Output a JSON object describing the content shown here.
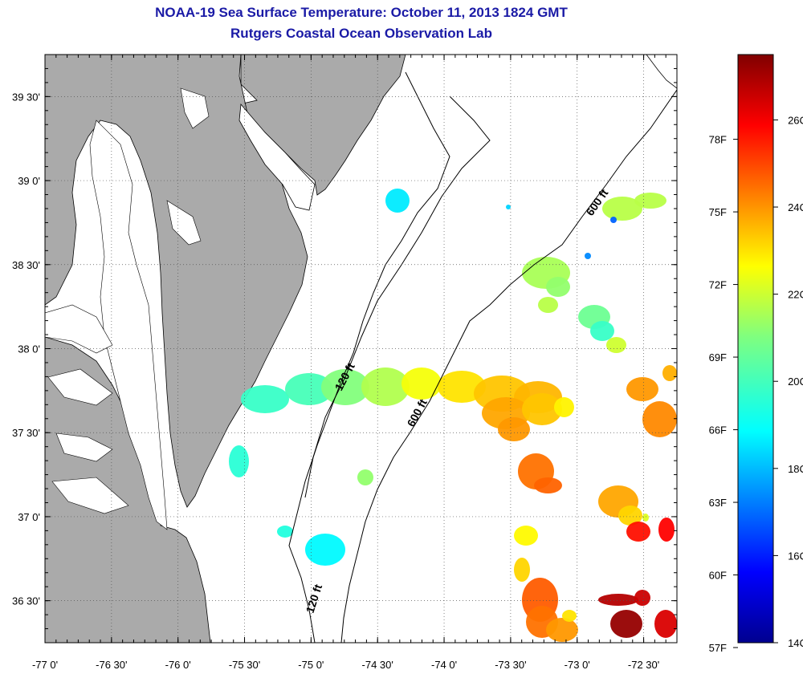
{
  "title": "NOAA-19 Sea Surface Temperature:  October 11, 2013 1824 GMT",
  "subtitle": "Rutgers Coastal Ocean Observation Lab",
  "map": {
    "lon_range": [
      -77.0,
      -72.25
    ],
    "lat_range": [
      36.25,
      39.75
    ],
    "lon_ticks": [
      {
        "v": -77.0,
        "label": "-77 0'"
      },
      {
        "v": -76.5,
        "label": "-76 30'"
      },
      {
        "v": -76.0,
        "label": "-76 0'"
      },
      {
        "v": -75.5,
        "label": "-75 30'"
      },
      {
        "v": -75.0,
        "label": "-75 0'"
      },
      {
        "v": -74.5,
        "label": "-74 30'"
      },
      {
        "v": -74.0,
        "label": "-74 0'"
      },
      {
        "v": -73.5,
        "label": "-73 30'"
      },
      {
        "v": -73.0,
        "label": "-73 0'"
      },
      {
        "v": -72.5,
        "label": "-72 30'"
      }
    ],
    "lat_ticks": [
      {
        "v": 39.5,
        "label": "39 30'"
      },
      {
        "v": 39.0,
        "label": "39 0'"
      },
      {
        "v": 38.5,
        "label": "38 30'"
      },
      {
        "v": 38.0,
        "label": "38 0'"
      },
      {
        "v": 37.5,
        "label": "37 30'"
      },
      {
        "v": 37.0,
        "label": "37 0'"
      },
      {
        "v": 36.5,
        "label": "36 30'"
      }
    ],
    "grid": "dotted",
    "land_color": "#aaaaaa",
    "contours": [
      {
        "label": "120 ft"
      },
      {
        "label": "600 ft"
      }
    ]
  },
  "colorbar": {
    "celsius_range": [
      14,
      27.5
    ],
    "celsius_labels": [
      "26C",
      "24C",
      "22C",
      "20C",
      "18C",
      "16C",
      "14C"
    ],
    "fahrenheit_labels": [
      "78F",
      "75F",
      "72F",
      "69F",
      "66F",
      "63F",
      "60F",
      "57F"
    ],
    "colormap": "jet"
  }
}
